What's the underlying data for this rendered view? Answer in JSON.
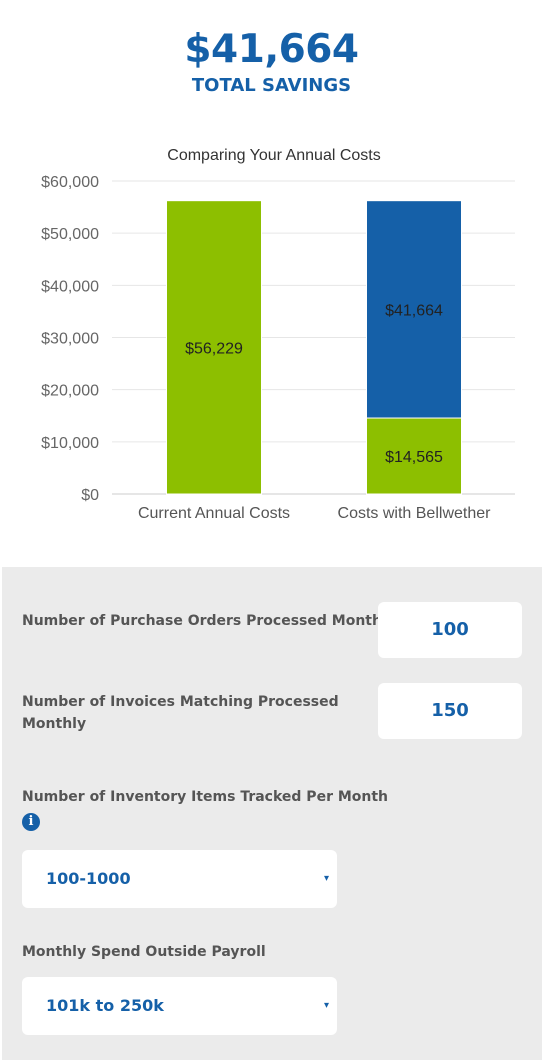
{
  "savings": {
    "amount": "$41,664",
    "label": "TOTAL SAVINGS"
  },
  "colors": {
    "accent_blue": "#1560a8",
    "accent_green": "#8dbf00",
    "panel_bg": "#ebebeb",
    "label_gray": "#555555"
  },
  "chart_data": {
    "type": "bar",
    "stacked": true,
    "title": "Comparing Your Annual Costs",
    "categories": [
      "Current Annual Costs",
      "Costs with Bellwether"
    ],
    "series": [
      {
        "values": [
          56229,
          14565
        ],
        "labels": [
          "$56,229",
          "$14,565"
        ],
        "color": "#8dbf00"
      },
      {
        "values": [
          0,
          41664
        ],
        "labels": [
          "",
          "$41,664"
        ],
        "color": "#1560a8"
      }
    ],
    "ylim": [
      0,
      60000
    ],
    "yticks": [
      0,
      10000,
      20000,
      30000,
      40000,
      50000,
      60000
    ],
    "ytick_labels": [
      "$0",
      "$10,000",
      "$20,000",
      "$30,000",
      "$40,000",
      "$50,000",
      "$60,000"
    ],
    "grid": true,
    "legend": "none"
  },
  "form": {
    "purchase_orders": {
      "label": "Number of Purchase Orders Processed Monthly",
      "value": "100"
    },
    "invoices": {
      "label_line1": "Number of Invoices Matching Processed",
      "label_line2": "Monthly",
      "value": "150"
    },
    "inventory": {
      "label": "Number of Inventory Items Tracked Per Month",
      "info_icon": "info-icon",
      "selected": "100-1000",
      "caret": "▾"
    },
    "spend": {
      "label": "Monthly Spend Outside Payroll",
      "selected": "101k to 250k",
      "caret": "▾"
    }
  }
}
